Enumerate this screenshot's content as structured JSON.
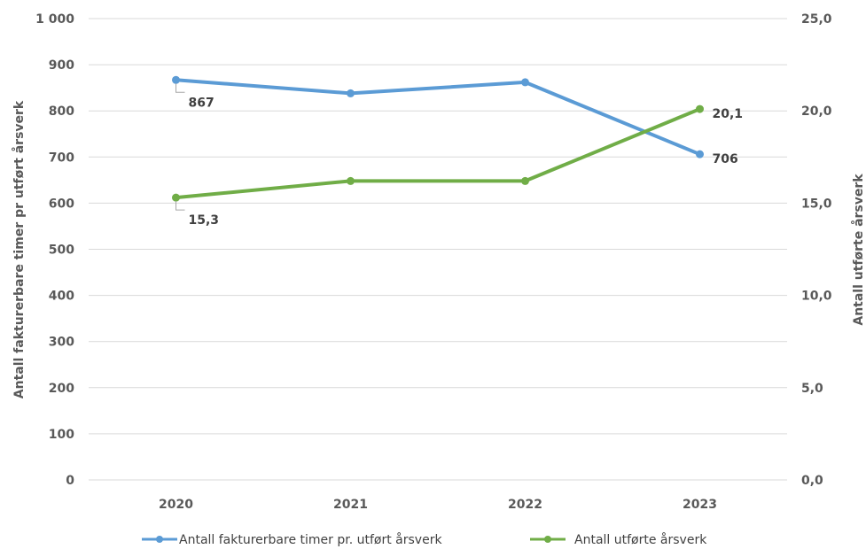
{
  "chart_data": {
    "type": "line",
    "categories": [
      "2020",
      "2021",
      "2022",
      "2023"
    ],
    "y_left": {
      "label": "Antall fakturerbare timer pr utført årsverk",
      "min": 0,
      "max": 1000,
      "step": 100,
      "tick_labels": [
        "0",
        "100",
        "200",
        "300",
        "400",
        "500",
        "600",
        "700",
        "800",
        "900",
        "1 000"
      ]
    },
    "y_right": {
      "label": "Antall utførte årsverk",
      "min": 0,
      "max": 25,
      "step": 5,
      "tick_labels": [
        "0,0",
        "5,0",
        "10,0",
        "15,0",
        "20,0",
        "25,0"
      ]
    },
    "grid": true,
    "legend_position": "bottom",
    "series": [
      {
        "name": "Antall fakturerbare timer pr. utført årsverk",
        "axis": "left",
        "color": "#5b9bd5",
        "values": [
          867,
          838,
          862,
          706
        ],
        "data_labels": [
          "867",
          "",
          "",
          "706"
        ]
      },
      {
        "name": "Antall utførte årsverk",
        "axis": "right",
        "color": "#70ad47",
        "values": [
          15.3,
          16.2,
          16.2,
          20.1
        ],
        "data_labels": [
          "15,3",
          "",
          "",
          "20,1"
        ]
      }
    ]
  }
}
